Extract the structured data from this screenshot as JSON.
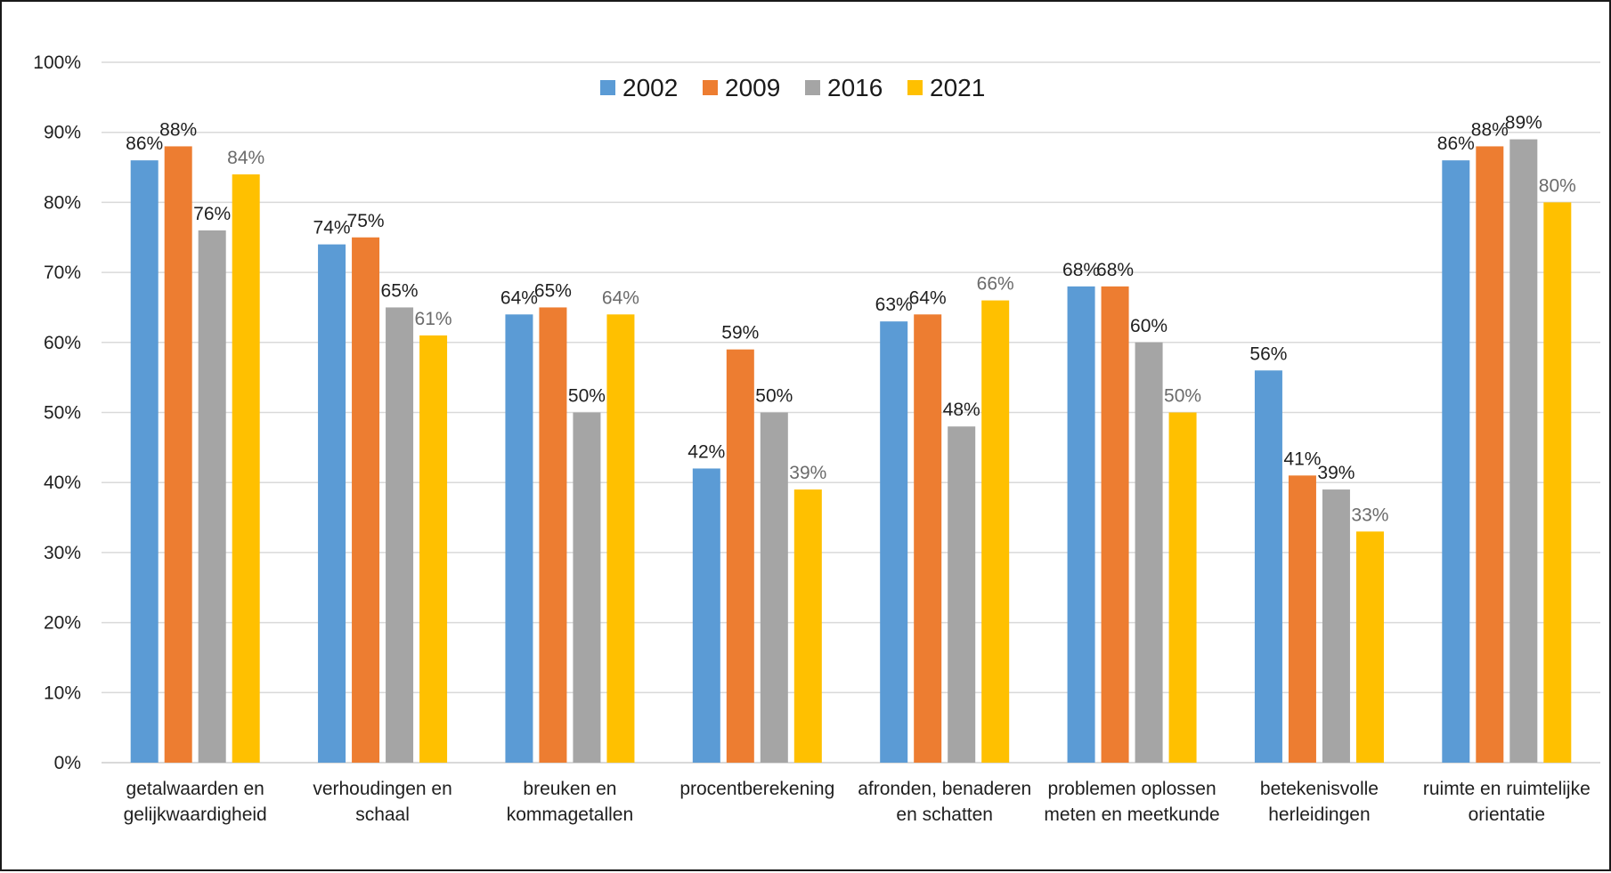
{
  "chart_data": {
    "type": "bar",
    "categories": [
      [
        "getalwaarden en",
        "gelijkwaardigheid"
      ],
      [
        "verhoudingen en",
        "schaal"
      ],
      [
        "breuken en",
        "kommagetallen"
      ],
      [
        "procentberekening"
      ],
      [
        "afronden, benaderen",
        "en schatten"
      ],
      [
        "problemen oplossen",
        "meten en meetkunde"
      ],
      [
        "betekenisvolle",
        "herleidingen"
      ],
      [
        "ruimte en ruimtelijke",
        "orientatie"
      ]
    ],
    "series": [
      {
        "name": "2002",
        "color": "#5b9bd5",
        "values": [
          86,
          74,
          64,
          42,
          63,
          68,
          56,
          86
        ]
      },
      {
        "name": "2009",
        "color": "#ed7d31",
        "values": [
          88,
          75,
          65,
          59,
          64,
          68,
          41,
          88
        ]
      },
      {
        "name": "2016",
        "color": "#a5a5a5",
        "values": [
          76,
          65,
          50,
          50,
          48,
          60,
          39,
          89
        ]
      },
      {
        "name": "2021",
        "color": "#ffc000",
        "values": [
          84,
          61,
          64,
          39,
          66,
          50,
          33,
          80
        ]
      }
    ],
    "yticks": [
      "0%",
      "10%",
      "20%",
      "30%",
      "40%",
      "50%",
      "60%",
      "70%",
      "80%",
      "90%",
      "100%"
    ],
    "ylim": [
      0,
      100
    ],
    "grid": true,
    "legend_position": "top-center",
    "data_label_suffix": "%",
    "title": "",
    "xlabel": "",
    "ylabel": ""
  }
}
